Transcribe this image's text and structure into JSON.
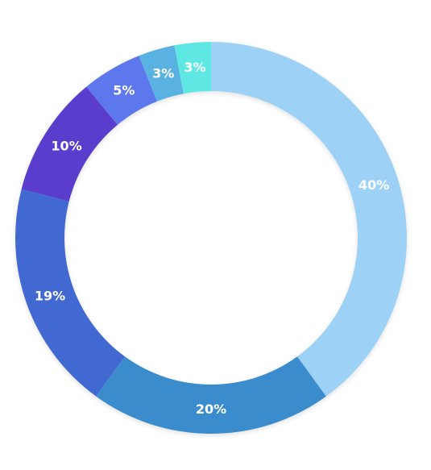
{
  "chart_data": {
    "type": "pie",
    "variant": "donut",
    "title": "",
    "start": "top",
    "direction": "clockwise",
    "slices": [
      {
        "label": "40%",
        "value": 40,
        "color": "#9ed1f6"
      },
      {
        "label": "20%",
        "value": 20,
        "color": "#3b8ccc"
      },
      {
        "label": "19%",
        "value": 19,
        "color": "#4268d2"
      },
      {
        "label": "10%",
        "value": 10,
        "color": "#5a3ccc"
      },
      {
        "label": "5%",
        "value": 5,
        "color": "#5b78ec"
      },
      {
        "label": "3%",
        "value": 3,
        "color": "#5ab2e2"
      },
      {
        "label": "3%",
        "value": 3,
        "color": "#5ee7e4"
      }
    ]
  }
}
